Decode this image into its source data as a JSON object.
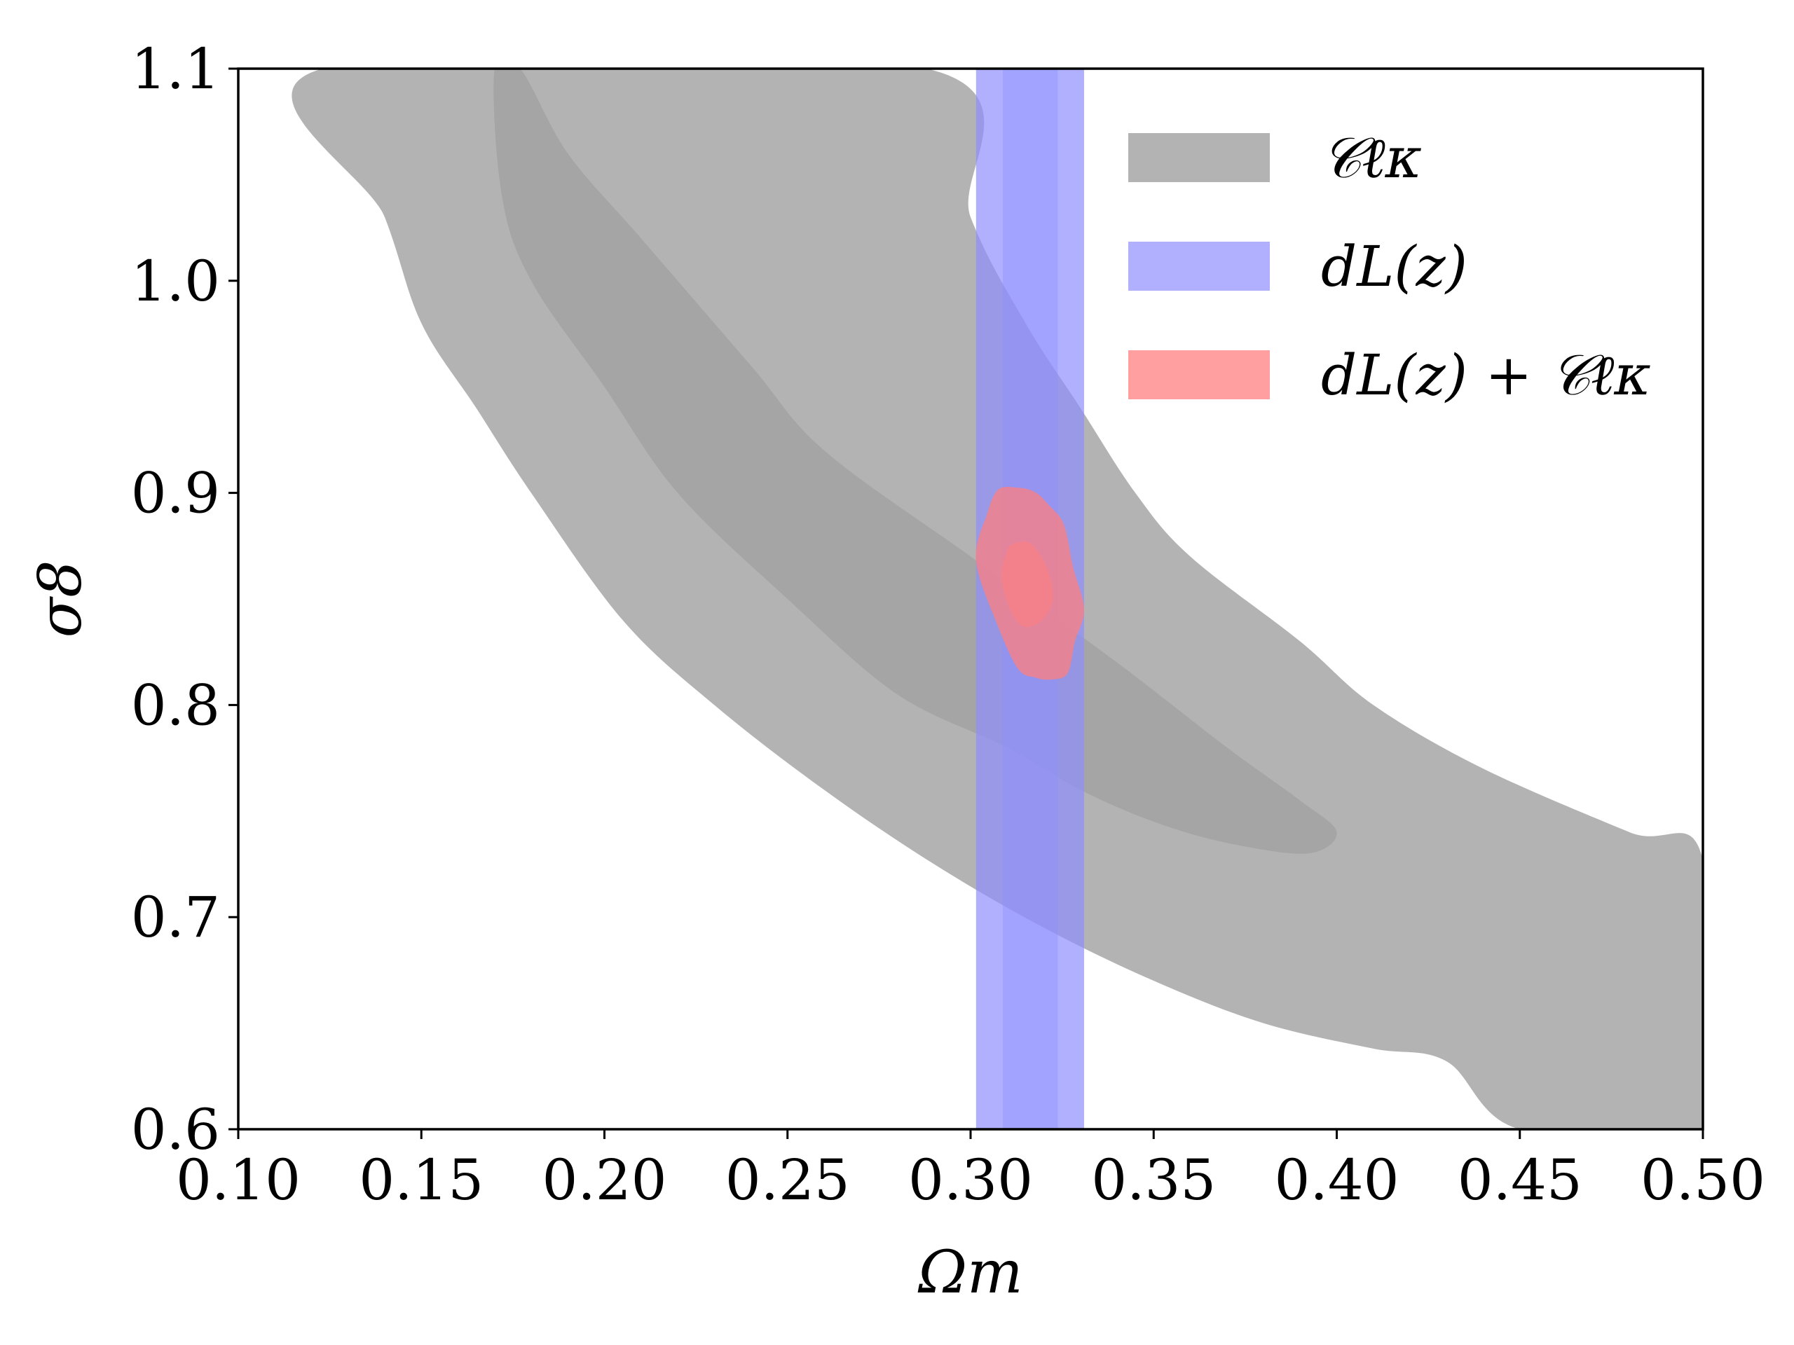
{
  "chart_data": {
    "type": "contour",
    "title": "",
    "xlabel": "Ωm",
    "ylabel": "σ8",
    "xlim": [
      0.1,
      0.5
    ],
    "ylim": [
      0.6,
      1.1
    ],
    "x_ticks": [
      "0.10",
      "0.15",
      "0.20",
      "0.25",
      "0.30",
      "0.35",
      "0.40",
      "0.45",
      "0.50"
    ],
    "y_ticks": [
      "0.6",
      "0.7",
      "0.8",
      "0.9",
      "1.0",
      "1.1"
    ],
    "grid": false,
    "legend_position": "top-right",
    "legend": [
      {
        "label": "𝒞ℓκ",
        "color": "#999999"
      },
      {
        "label": "dL(z)",
        "color": "#8f8fff"
      },
      {
        "label": "dL(z) + 𝒞ℓκ",
        "color": "#ff7f7f"
      }
    ],
    "series": [
      {
        "name": "𝒞ℓκ",
        "color": "#999999",
        "contours": [
          {
            "level": "2-sigma",
            "opacity": 0.75,
            "points": [
              [
                0.123,
                1.1
              ],
              [
                0.14,
                1.03
              ],
              [
                0.15,
                0.98
              ],
              [
                0.165,
                0.94
              ],
              [
                0.18,
                0.9
              ],
              [
                0.205,
                0.84
              ],
              [
                0.23,
                0.8
              ],
              [
                0.26,
                0.76
              ],
              [
                0.29,
                0.725
              ],
              [
                0.32,
                0.695
              ],
              [
                0.35,
                0.67
              ],
              [
                0.38,
                0.65
              ],
              [
                0.41,
                0.638
              ],
              [
                0.43,
                0.632
              ],
              [
                0.45,
                0.6
              ],
              [
                0.5,
                0.6
              ],
              [
                0.5,
                0.727
              ],
              [
                0.48,
                0.74
              ],
              [
                0.44,
                0.77
              ],
              [
                0.41,
                0.8
              ],
              [
                0.39,
                0.83
              ],
              [
                0.36,
                0.87
              ],
              [
                0.345,
                0.9
              ],
              [
                0.33,
                0.94
              ],
              [
                0.315,
                0.98
              ],
              [
                0.3,
                1.03
              ],
              [
                0.288,
                1.1
              ]
            ]
          },
          {
            "level": "1-sigma",
            "opacity": 0.55,
            "points": [
              [
                0.17,
                1.1
              ],
              [
                0.172,
                1.04
              ],
              [
                0.18,
                1.0
              ],
              [
                0.2,
                0.95
              ],
              [
                0.22,
                0.9
              ],
              [
                0.25,
                0.85
              ],
              [
                0.28,
                0.805
              ],
              [
                0.31,
                0.78
              ],
              [
                0.33,
                0.76
              ],
              [
                0.35,
                0.745
              ],
              [
                0.37,
                0.735
              ],
              [
                0.392,
                0.73
              ],
              [
                0.4,
                0.74
              ],
              [
                0.39,
                0.755
              ],
              [
                0.37,
                0.78
              ],
              [
                0.34,
                0.82
              ],
              [
                0.3,
                0.87
              ],
              [
                0.26,
                0.92
              ],
              [
                0.24,
                0.96
              ],
              [
                0.21,
                1.02
              ],
              [
                0.19,
                1.06
              ],
              [
                0.177,
                1.1
              ]
            ]
          }
        ]
      },
      {
        "name": "dL(z)",
        "color": "#8f8fff",
        "bands": [
          {
            "level": "2-sigma",
            "x_range": [
              0.3015,
              0.331
            ],
            "opacity": 0.7
          },
          {
            "level": "1-sigma",
            "x_range": [
              0.3088,
              0.3238
            ],
            "opacity": 0.4
          }
        ]
      },
      {
        "name": "dL(z) + 𝒞ℓκ",
        "color": "#ff7f7f",
        "contours": [
          {
            "level": "2-sigma",
            "opacity": 0.75,
            "points": [
              [
                0.3125,
                0.9025
              ],
              [
                0.3175,
                0.9005
              ],
              [
                0.3215,
                0.894
              ],
              [
                0.3255,
                0.885
              ],
              [
                0.328,
                0.865
              ],
              [
                0.331,
                0.845
              ],
              [
                0.3285,
                0.83
              ],
              [
                0.3265,
                0.815
              ],
              [
                0.322,
                0.812
              ],
              [
                0.3175,
                0.813
              ],
              [
                0.313,
                0.817
              ],
              [
                0.3075,
                0.837
              ],
              [
                0.3015,
                0.868
              ],
              [
                0.3045,
                0.89
              ],
              [
                0.3075,
                0.9015
              ]
            ]
          },
          {
            "level": "1-sigma",
            "opacity": 0.55,
            "points": [
              [
                0.3118,
                0.876
              ],
              [
                0.3165,
                0.876
              ],
              [
                0.321,
                0.864
              ],
              [
                0.3225,
                0.85
              ],
              [
                0.3195,
                0.84
              ],
              [
                0.3145,
                0.837
              ],
              [
                0.3108,
                0.845
              ],
              [
                0.3085,
                0.86
              ],
              [
                0.3098,
                0.872
              ]
            ]
          }
        ]
      }
    ]
  }
}
